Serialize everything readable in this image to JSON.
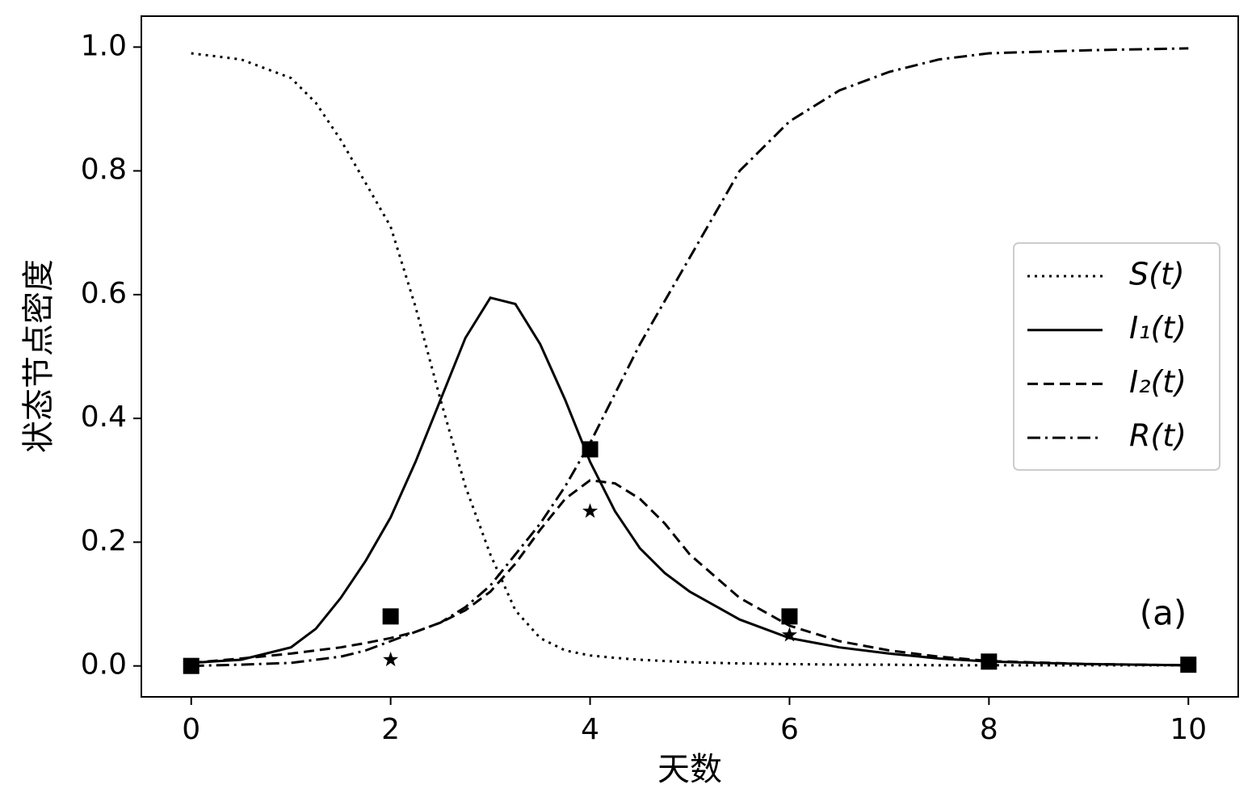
{
  "chart_data": {
    "type": "line",
    "xlabel": "天数",
    "ylabel": "状态节点密度",
    "annotation": "(a)",
    "xlim": [
      -0.5,
      10.5
    ],
    "ylim": [
      -0.05,
      1.05
    ],
    "xticks": [
      0,
      2,
      4,
      6,
      8,
      10
    ],
    "yticks": [
      {
        "value": 0,
        "label": "0.0"
      },
      {
        "value": 0.2,
        "label": "0.2"
      },
      {
        "value": 0.4,
        "label": "0.4"
      },
      {
        "value": 0.6,
        "label": "0.6"
      },
      {
        "value": 0.8,
        "label": "0.8"
      },
      {
        "value": 1,
        "label": "1.0"
      }
    ],
    "legend": "center right",
    "x": [
      0,
      0.5,
      1,
      1.25,
      1.5,
      1.75,
      2,
      2.25,
      2.5,
      2.75,
      3,
      3.25,
      3.5,
      3.75,
      4,
      4.25,
      4.5,
      4.75,
      5,
      5.5,
      6,
      6.5,
      7,
      7.5,
      8,
      9,
      10
    ],
    "series": [
      {
        "name": "S(t)",
        "color": "#000000",
        "style": "dotted",
        "values": [
          0.99,
          0.98,
          0.95,
          0.91,
          0.85,
          0.78,
          0.71,
          0.58,
          0.43,
          0.29,
          0.18,
          0.09,
          0.045,
          0.025,
          0.017,
          0.013,
          0.01,
          0.008,
          0.006,
          0.004,
          0.003,
          0.002,
          0.002,
          0.001,
          0.001,
          0.001,
          0.001
        ]
      },
      {
        "name": "I₁(t)",
        "color": "#000000",
        "style": "solid",
        "values": [
          0.005,
          0.01,
          0.03,
          0.06,
          0.11,
          0.17,
          0.24,
          0.33,
          0.43,
          0.53,
          0.595,
          0.585,
          0.52,
          0.43,
          0.33,
          0.25,
          0.19,
          0.15,
          0.12,
          0.075,
          0.045,
          0.03,
          0.02,
          0.012,
          0.007,
          0.003,
          0.001
        ]
      },
      {
        "name": "I₂(t)",
        "color": "#000000",
        "style": "dashed",
        "values": [
          0.005,
          0.012,
          0.02,
          0.025,
          0.03,
          0.037,
          0.045,
          0.055,
          0.07,
          0.09,
          0.12,
          0.165,
          0.22,
          0.27,
          0.3,
          0.295,
          0.27,
          0.23,
          0.18,
          0.11,
          0.065,
          0.04,
          0.025,
          0.015,
          0.008,
          0.003,
          0.001
        ]
      },
      {
        "name": "R(t)",
        "color": "#000000",
        "style": "dashdot",
        "values": [
          0,
          0.002,
          0.005,
          0.01,
          0.015,
          0.025,
          0.04,
          0.055,
          0.07,
          0.095,
          0.13,
          0.18,
          0.23,
          0.29,
          0.36,
          0.44,
          0.52,
          0.59,
          0.66,
          0.8,
          0.88,
          0.93,
          0.96,
          0.98,
          0.99,
          0.995,
          0.998
        ]
      }
    ],
    "points": [
      {
        "marker": "square",
        "color": "#000000",
        "x": [
          0,
          2,
          4,
          6,
          8,
          10
        ],
        "values": [
          0,
          0.08,
          0.35,
          0.08,
          0.007,
          0.002
        ]
      },
      {
        "marker": "star",
        "color": "#000000",
        "x": [
          2,
          4,
          6
        ],
        "values": [
          0.01,
          0.25,
          0.05
        ]
      }
    ]
  }
}
